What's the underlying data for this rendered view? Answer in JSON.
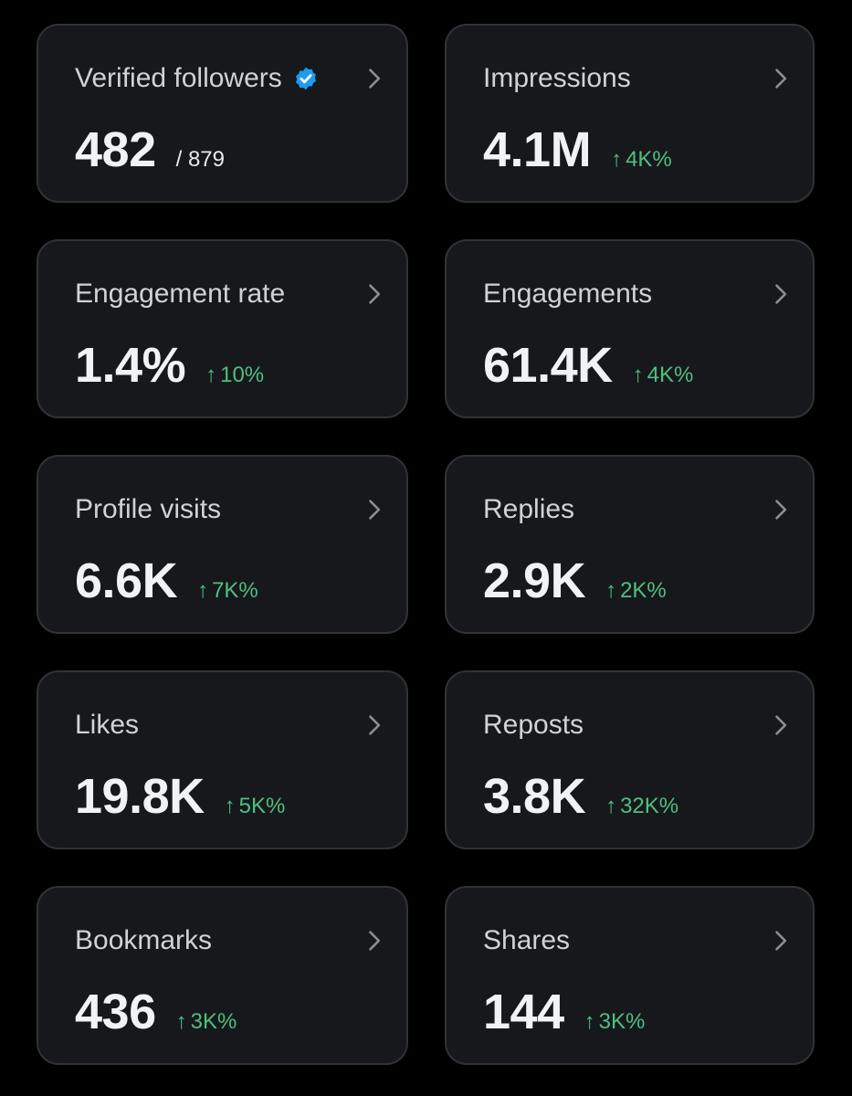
{
  "colors": {
    "background": "#000000",
    "card": "#16181c",
    "card_border": "#2f3336",
    "positive": "#4fbf80",
    "verified": "#1d9bf0"
  },
  "cards": [
    {
      "title": "Verified followers",
      "value": "482",
      "sub": "/ 879",
      "icon": "verified-badge-icon"
    },
    {
      "title": "Impressions",
      "value": "4.1M",
      "change": "4K%"
    },
    {
      "title": "Engagement rate",
      "value": "1.4%",
      "change": "10%"
    },
    {
      "title": "Engagements",
      "value": "61.4K",
      "change": "4K%"
    },
    {
      "title": "Profile visits",
      "value": "6.6K",
      "change": "7K%"
    },
    {
      "title": "Replies",
      "value": "2.9K",
      "change": "2K%"
    },
    {
      "title": "Likes",
      "value": "19.8K",
      "change": "5K%"
    },
    {
      "title": "Reposts",
      "value": "3.8K",
      "change": "32K%"
    },
    {
      "title": "Bookmarks",
      "value": "436",
      "change": "3K%"
    },
    {
      "title": "Shares",
      "value": "144",
      "change": "3K%"
    }
  ]
}
